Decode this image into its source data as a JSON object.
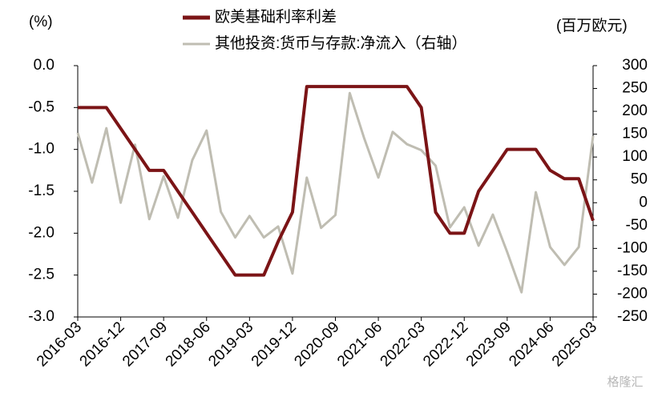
{
  "chart_data": {
    "type": "line",
    "ylabel": "(%)",
    "y2label": "(百万欧元)",
    "categories": [
      "2016-03",
      null,
      null,
      "2016-12",
      null,
      null,
      "2017-09",
      null,
      null,
      "2018-06",
      null,
      null,
      "2019-03",
      null,
      null,
      "2019-12",
      null,
      null,
      "2020-09",
      null,
      null,
      "2021-06",
      null,
      null,
      "2022-03",
      null,
      null,
      "2022-12",
      null,
      null,
      "2023-09",
      null,
      null,
      "2024-06",
      null,
      null,
      "2025-03"
    ],
    "series": [
      {
        "name": "欧美基础利率利差",
        "color": "#7b1416",
        "axis": "y",
        "values": [
          -0.5,
          -0.5,
          -0.5,
          -0.75,
          -1.0,
          -1.25,
          -1.25,
          -1.5,
          -1.75,
          -2.0,
          -2.25,
          -2.5,
          -2.5,
          -2.5,
          -2.1,
          -1.75,
          -0.25,
          -0.25,
          -0.25,
          -0.25,
          -0.25,
          -0.25,
          -0.25,
          -0.25,
          -0.5,
          -1.75,
          -2.0,
          -2.0,
          -1.5,
          -1.25,
          -1.0,
          -1.0,
          -1.0,
          -1.25,
          -1.35,
          -1.35,
          -1.85
        ]
      },
      {
        "name": "其他投资:货币与存款:净流入（右轴）",
        "color": "#bfbdb2",
        "axis": "y2",
        "values": [
          153,
          44,
          163,
          0,
          127,
          -36,
          58,
          -33,
          93,
          158,
          -20,
          -76,
          -29,
          -76,
          -52,
          -155,
          55,
          -55,
          -27,
          240,
          142,
          55,
          155,
          128,
          115,
          81,
          -54,
          -10,
          -94,
          -26,
          -108,
          -196,
          23,
          -97,
          -136,
          -97,
          146
        ]
      }
    ],
    "ylim": [
      -3,
      0
    ],
    "yticks": [
      {
        "value": 0,
        "label": "0.0"
      },
      -0.5,
      {
        "value": -1,
        "label": "-1.0"
      },
      -1.5,
      {
        "value": -2,
        "label": "-2.0"
      },
      -2.5,
      {
        "value": -3,
        "label": "-3.0"
      }
    ],
    "y2lim": [
      -250,
      300
    ],
    "y2ticks": [
      300,
      250,
      200,
      150,
      100,
      50,
      0,
      -50,
      -100,
      -150,
      -200,
      -250
    ],
    "watermark": "格隆汇"
  }
}
